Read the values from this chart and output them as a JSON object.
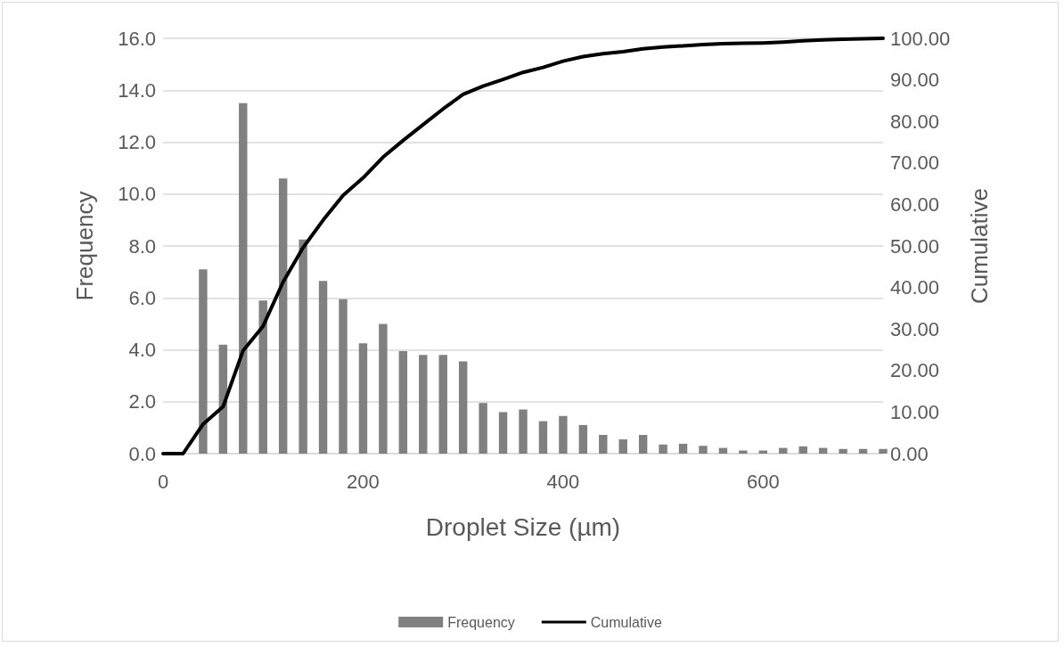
{
  "chart_data": {
    "type": "bar",
    "xlabel": "Droplet Size (µm)",
    "ylabel": "Frequency",
    "y2label": "Cumulative",
    "categories": [
      "0",
      null,
      null,
      null,
      null,
      null,
      null,
      null,
      null,
      null,
      "200",
      null,
      null,
      null,
      null,
      null,
      null,
      null,
      null,
      null,
      "400",
      null,
      null,
      null,
      null,
      null,
      null,
      null,
      null,
      null,
      "600",
      null,
      null,
      null,
      null,
      null,
      null
    ],
    "series": [
      {
        "name": "Frequency",
        "color": "#808080",
        "values": [
          0,
          0,
          7.1,
          4.2,
          13.5,
          5.9,
          10.6,
          8.25,
          6.65,
          5.95,
          4.25,
          5.0,
          3.95,
          3.8,
          3.8,
          3.55,
          1.95,
          1.6,
          1.7,
          1.25,
          1.45,
          1.1,
          0.72,
          0.55,
          0.72,
          0.35,
          0.38,
          0.3,
          0.22,
          0.12,
          0.12,
          0.22,
          0.28,
          0.22,
          0.18,
          0.18,
          0.18
        ]
      },
      {
        "name": "Cumulative",
        "type": "line",
        "axis": "y2",
        "color": "#000000",
        "values": [
          0,
          0,
          7.1,
          11.3,
          24.8,
          30.7,
          41.3,
          49.6,
          56.2,
          62.2,
          66.4,
          71.4,
          75.4,
          79.2,
          83.0,
          86.5,
          88.5,
          90.1,
          91.8,
          93.0,
          94.5,
          95.6,
          96.3,
          96.8,
          97.5,
          97.9,
          98.2,
          98.5,
          98.7,
          98.8,
          98.9,
          99.1,
          99.4,
          99.6,
          99.8,
          99.9,
          100
        ]
      }
    ],
    "ylim": [
      0,
      16
    ],
    "yticks": [
      {
        "value": 0,
        "label": "0.0"
      },
      {
        "value": 2,
        "label": "2.0"
      },
      {
        "value": 4,
        "label": "4.0"
      },
      {
        "value": 6,
        "label": "6.0"
      },
      {
        "value": 8,
        "label": "8.0"
      },
      {
        "value": 10,
        "label": "10.0"
      },
      {
        "value": 12,
        "label": "12.0"
      },
      {
        "value": 14,
        "label": "14.0"
      },
      {
        "value": 16,
        "label": "16.0"
      }
    ],
    "y2lim": [
      0,
      100
    ],
    "y2ticks": [
      {
        "value": 0,
        "label": "0.00"
      },
      {
        "value": 10,
        "label": "10.00"
      },
      {
        "value": 20,
        "label": "20.00"
      },
      {
        "value": 30,
        "label": "30.00"
      },
      {
        "value": 40,
        "label": "40.00"
      },
      {
        "value": 50,
        "label": "50.00"
      },
      {
        "value": 60,
        "label": "60.00"
      },
      {
        "value": 70,
        "label": "70.00"
      },
      {
        "value": 80,
        "label": "80.00"
      },
      {
        "value": 90,
        "label": "90.00"
      },
      {
        "value": 100,
        "label": "100.00"
      }
    ],
    "grid": "y",
    "legend": "bottom",
    "marker": "none",
    "line_style": "solid"
  }
}
